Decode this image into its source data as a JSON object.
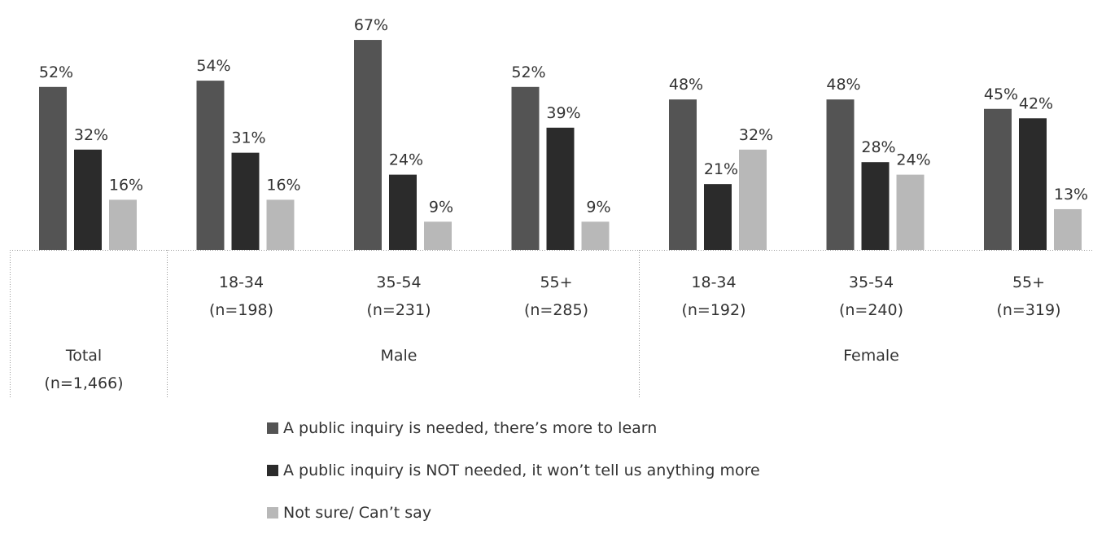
{
  "chart_data": {
    "type": "bar",
    "categories": [
      {
        "label": "Total",
        "n": "(n=1,466)",
        "group": ""
      },
      {
        "label": "18-34",
        "n": "(n=198)",
        "group": "Male"
      },
      {
        "label": "35-54",
        "n": "(n=231)",
        "group": "Male"
      },
      {
        "label": "55+",
        "n": "(n=285)",
        "group": "Male"
      },
      {
        "label": "18-34",
        "n": "(n=192)",
        "group": "Female"
      },
      {
        "label": "35-54",
        "n": "(n=240)",
        "group": "Female"
      },
      {
        "label": "55+",
        "n": "(n=319)",
        "group": "Female"
      }
    ],
    "groups": [
      {
        "name": "Male",
        "from": 1,
        "to": 3
      },
      {
        "name": "Female",
        "from": 4,
        "to": 6
      }
    ],
    "series": [
      {
        "name": "A public inquiry is needed, there’s more to learn",
        "values": [
          52,
          54,
          67,
          52,
          48,
          48,
          45
        ],
        "color": "#545454"
      },
      {
        "name": "A public inquiry is NOT needed, it won’t tell us anything more",
        "values": [
          32,
          31,
          24,
          39,
          21,
          28,
          42
        ],
        "color": "#2b2b2b"
      },
      {
        "name": "Not sure/ Can’t say",
        "values": [
          16,
          16,
          9,
          9,
          32,
          24,
          13
        ],
        "color": "#b8b8b8"
      }
    ],
    "value_suffix": "%",
    "ylim": [
      0,
      67
    ],
    "legend": "bottom",
    "grid": false
  }
}
